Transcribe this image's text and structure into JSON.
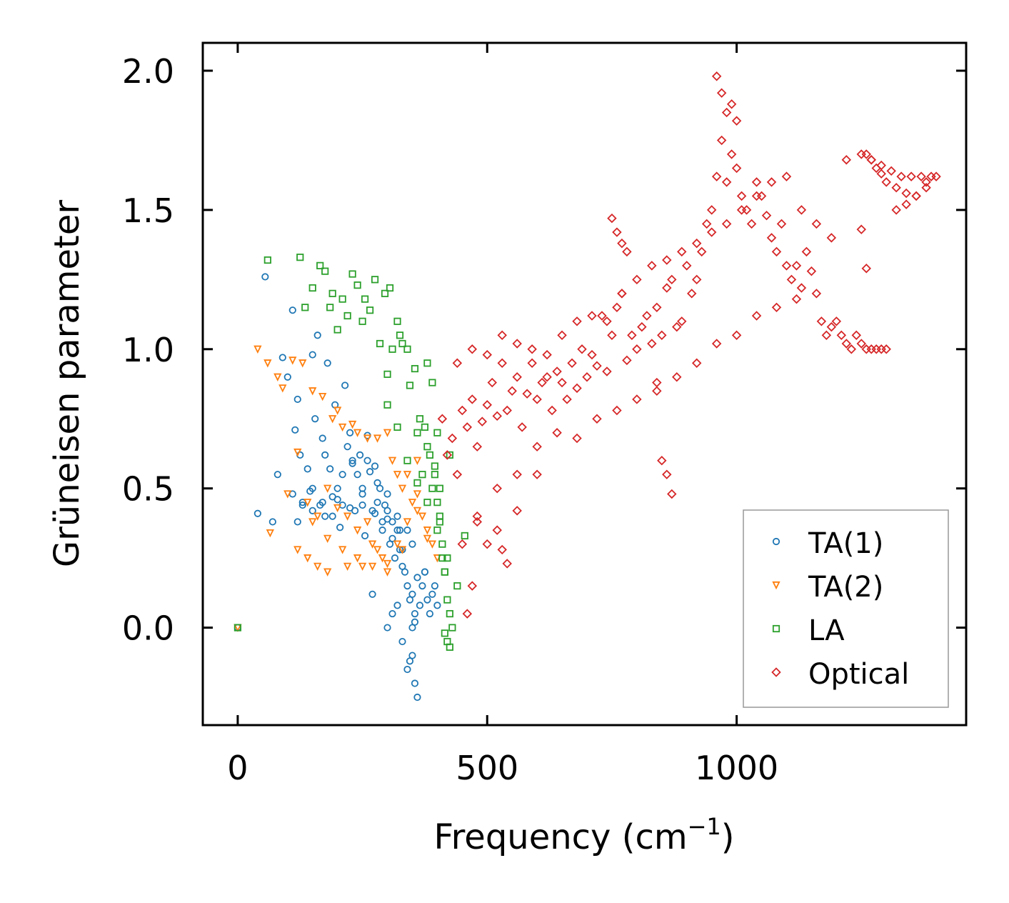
{
  "chart_data": {
    "type": "scatter",
    "xlabel": "Frequency (cm",
    "xlabel_sup": "−1",
    "xlabel_close": ")",
    "ylabel": "Grüneisen parameter",
    "xlim": [
      -70,
      1460
    ],
    "ylim": [
      -0.35,
      2.1
    ],
    "x_ticks": [
      0,
      500,
      1000
    ],
    "x_tick_labels": [
      "0",
      "500",
      "1000"
    ],
    "y_ticks": [
      0.0,
      0.5,
      1.0,
      1.5,
      2.0
    ],
    "y_tick_labels": [
      "0.0",
      "0.5",
      "1.0",
      "1.5",
      "2.0"
    ],
    "grid": false,
    "legend_position": "lower-right",
    "series": [
      {
        "name": "TA(1)",
        "marker": "circle",
        "color": "#1f77b4",
        "x": [
          0,
          55,
          40,
          70,
          80,
          90,
          100,
          110,
          115,
          120,
          120,
          125,
          130,
          140,
          145,
          150,
          155,
          160,
          165,
          170,
          175,
          180,
          185,
          190,
          195,
          200,
          205,
          210,
          215,
          220,
          225,
          230,
          235,
          240,
          245,
          250,
          255,
          260,
          265,
          270,
          275,
          280,
          285,
          290,
          295,
          300,
          305,
          310,
          315,
          320,
          325,
          330,
          335,
          340,
          345,
          350,
          355,
          360,
          365,
          370,
          375,
          380,
          385,
          390,
          395,
          400,
          260,
          280,
          300,
          320,
          340,
          350,
          355,
          360,
          300,
          310,
          320,
          330,
          340,
          345,
          350,
          355,
          150,
          170,
          190,
          210,
          230,
          250,
          270,
          290,
          310,
          330,
          110,
          130,
          150,
          175,
          200,
          225,
          250,
          275,
          300,
          325,
          350,
          375
        ],
        "y": [
          0.0,
          1.26,
          0.41,
          0.38,
          0.55,
          0.97,
          0.9,
          1.14,
          0.71,
          0.82,
          0.38,
          0.62,
          0.45,
          0.57,
          0.49,
          0.98,
          0.75,
          1.05,
          0.44,
          0.68,
          0.62,
          0.95,
          0.57,
          0.47,
          0.8,
          0.5,
          0.36,
          0.44,
          0.87,
          0.65,
          0.7,
          0.59,
          0.42,
          0.55,
          0.62,
          0.48,
          0.33,
          0.69,
          0.56,
          0.12,
          0.58,
          0.45,
          0.5,
          0.35,
          0.44,
          0.42,
          0.3,
          0.38,
          0.25,
          0.35,
          0.28,
          0.22,
          0.2,
          0.15,
          0.1,
          0.12,
          0.05,
          0.18,
          0.08,
          0.15,
          0.2,
          0.1,
          0.05,
          0.12,
          0.15,
          0.08,
          0.6,
          0.52,
          0.48,
          0.4,
          0.35,
          -0.1,
          -0.2,
          -0.25,
          0.0,
          0.05,
          0.08,
          -0.05,
          -0.15,
          -0.12,
          0.0,
          0.02,
          0.5,
          0.45,
          0.4,
          0.55,
          0.6,
          0.5,
          0.42,
          0.38,
          0.32,
          0.28,
          0.48,
          0.44,
          0.42,
          0.4,
          0.46,
          0.43,
          0.44,
          0.41,
          0.39,
          0.35,
          0.3,
          0.2
        ]
      },
      {
        "name": "TA(2)",
        "marker": "triangle-down",
        "color": "#ff7f0e",
        "x": [
          0,
          40,
          60,
          65,
          80,
          90,
          100,
          110,
          120,
          130,
          140,
          150,
          160,
          170,
          180,
          190,
          200,
          210,
          220,
          230,
          240,
          250,
          260,
          270,
          280,
          290,
          300,
          310,
          320,
          330,
          340,
          350,
          360,
          370,
          380,
          390,
          400,
          120,
          140,
          160,
          180,
          200,
          220,
          240,
          260,
          280,
          300,
          320,
          340,
          360,
          380,
          150,
          180,
          210,
          240,
          270,
          300,
          330,
          360
        ],
        "y": [
          0.0,
          1.0,
          0.95,
          0.34,
          0.9,
          0.86,
          0.48,
          0.96,
          0.28,
          0.95,
          0.25,
          0.85,
          0.22,
          0.83,
          0.2,
          0.75,
          0.78,
          0.72,
          0.22,
          0.73,
          0.7,
          0.22,
          0.68,
          0.3,
          0.68,
          0.25,
          0.7,
          0.6,
          0.55,
          0.5,
          0.55,
          0.45,
          0.48,
          0.4,
          0.35,
          0.3,
          0.25,
          0.63,
          0.45,
          0.4,
          0.5,
          0.43,
          0.4,
          0.35,
          0.38,
          0.28,
          0.23,
          0.3,
          0.38,
          0.42,
          0.32,
          0.38,
          0.32,
          0.28,
          0.25,
          0.22,
          0.2,
          0.28,
          0.6
        ]
      },
      {
        "name": "LA",
        "marker": "square",
        "color": "#2ca02c",
        "x": [
          0,
          60,
          125,
          135,
          150,
          165,
          175,
          185,
          190,
          200,
          210,
          220,
          230,
          240,
          250,
          255,
          265,
          275,
          285,
          295,
          300,
          305,
          310,
          320,
          325,
          330,
          340,
          345,
          355,
          360,
          365,
          370,
          375,
          380,
          385,
          390,
          395,
          400,
          405,
          410,
          415,
          420,
          425,
          430,
          300,
          320,
          340,
          360,
          380,
          400,
          420,
          440,
          455,
          380,
          390,
          400,
          405,
          410,
          415,
          420,
          425,
          395,
          405,
          415,
          425
        ],
        "y": [
          0.0,
          1.32,
          1.33,
          1.15,
          1.22,
          1.3,
          1.28,
          1.15,
          1.2,
          1.07,
          1.18,
          1.12,
          1.27,
          1.23,
          1.1,
          1.18,
          1.14,
          1.25,
          1.02,
          1.2,
          0.91,
          1.22,
          1.0,
          1.1,
          1.05,
          1.02,
          1.0,
          0.87,
          0.93,
          0.7,
          0.75,
          0.55,
          0.72,
          0.65,
          0.62,
          0.5,
          0.58,
          0.45,
          0.38,
          0.3,
          0.2,
          0.1,
          0.05,
          0.0,
          0.8,
          0.72,
          0.6,
          0.52,
          0.45,
          0.35,
          0.25,
          0.15,
          0.33,
          0.95,
          0.88,
          0.7,
          0.5,
          0.25,
          -0.02,
          -0.05,
          -0.07,
          0.55,
          0.4,
          0.2,
          0.62
        ]
      },
      {
        "name": "Optical",
        "marker": "diamond",
        "color": "#d62728",
        "x": [
          410,
          420,
          430,
          440,
          450,
          460,
          470,
          480,
          490,
          500,
          510,
          520,
          530,
          540,
          550,
          560,
          570,
          580,
          590,
          600,
          610,
          620,
          630,
          640,
          650,
          660,
          670,
          680,
          690,
          700,
          710,
          720,
          730,
          740,
          750,
          760,
          770,
          780,
          790,
          800,
          810,
          820,
          830,
          840,
          850,
          860,
          870,
          880,
          890,
          900,
          910,
          920,
          930,
          940,
          950,
          960,
          970,
          980,
          990,
          1000,
          1010,
          1020,
          1030,
          1040,
          1050,
          1060,
          1070,
          1080,
          1090,
          1100,
          1110,
          1120,
          1130,
          1140,
          1150,
          1160,
          1170,
          1180,
          1190,
          1200,
          1210,
          1220,
          1230,
          1240,
          1250,
          1260,
          1270,
          1280,
          1290,
          1300,
          450,
          480,
          520,
          560,
          600,
          640,
          680,
          720,
          760,
          800,
          840,
          880,
          920,
          960,
          1000,
          1040,
          1080,
          1120,
          440,
          470,
          500,
          530,
          560,
          590,
          620,
          650,
          680,
          710,
          740,
          770,
          800,
          830,
          860,
          890,
          920,
          950,
          980,
          1010,
          1040,
          1070,
          1100,
          1130,
          1160,
          1190,
          1220,
          1250,
          1270,
          1290,
          1310,
          1330,
          1350,
          1370,
          1390,
          1260,
          1270,
          1280,
          1290,
          1300,
          1320,
          1340,
          1360,
          1380,
          1400,
          1320,
          1340,
          1360,
          1380,
          1250,
          1260,
          960,
          970,
          980,
          990,
          1000,
          750,
          760,
          770,
          780,
          840,
          850,
          860,
          870,
          600,
          560,
          520,
          480,
          540,
          530,
          500,
          470,
          460
        ],
        "y": [
          0.75,
          0.62,
          0.68,
          0.55,
          0.78,
          0.72,
          0.82,
          0.65,
          0.74,
          0.8,
          0.88,
          0.76,
          0.95,
          0.78,
          0.85,
          0.9,
          0.72,
          0.84,
          0.95,
          0.82,
          0.88,
          0.9,
          0.78,
          0.92,
          0.88,
          0.82,
          0.95,
          0.86,
          1.0,
          0.9,
          0.98,
          0.94,
          1.12,
          0.92,
          1.05,
          1.15,
          1.2,
          0.96,
          1.05,
          1.0,
          1.08,
          1.12,
          1.02,
          1.15,
          1.05,
          1.22,
          1.25,
          1.08,
          1.1,
          1.3,
          1.2,
          1.25,
          1.35,
          1.45,
          1.5,
          1.62,
          1.75,
          1.6,
          1.7,
          1.65,
          1.55,
          1.5,
          1.45,
          1.6,
          1.55,
          1.48,
          1.4,
          1.35,
          1.45,
          1.3,
          1.25,
          1.3,
          1.22,
          1.35,
          1.28,
          1.2,
          1.1,
          1.05,
          1.08,
          1.1,
          1.05,
          1.02,
          1.0,
          1.05,
          1.02,
          1.0,
          1.0,
          1.0,
          1.0,
          1.0,
          0.3,
          0.4,
          0.5,
          0.55,
          0.65,
          0.7,
          0.68,
          0.75,
          0.78,
          0.82,
          0.88,
          0.9,
          0.95,
          1.02,
          1.05,
          1.12,
          1.15,
          1.18,
          0.95,
          1.0,
          0.98,
          1.05,
          1.02,
          1.0,
          0.98,
          1.05,
          1.1,
          1.12,
          1.1,
          1.2,
          1.25,
          1.3,
          1.32,
          1.35,
          1.38,
          1.42,
          1.45,
          1.5,
          1.55,
          1.6,
          1.62,
          1.5,
          1.45,
          1.4,
          1.68,
          1.7,
          1.68,
          1.66,
          1.64,
          1.62,
          1.62,
          1.62,
          1.62,
          1.7,
          1.68,
          1.65,
          1.63,
          1.6,
          1.58,
          1.56,
          1.55,
          1.6,
          1.62,
          1.5,
          1.52,
          1.55,
          1.58,
          1.43,
          1.29,
          1.98,
          1.92,
          1.85,
          1.88,
          1.82,
          1.47,
          1.42,
          1.38,
          1.35,
          0.85,
          0.6,
          0.55,
          0.48,
          0.55,
          0.42,
          0.35,
          0.38,
          0.23,
          0.28,
          0.3,
          0.15,
          0.05
        ]
      }
    ]
  }
}
